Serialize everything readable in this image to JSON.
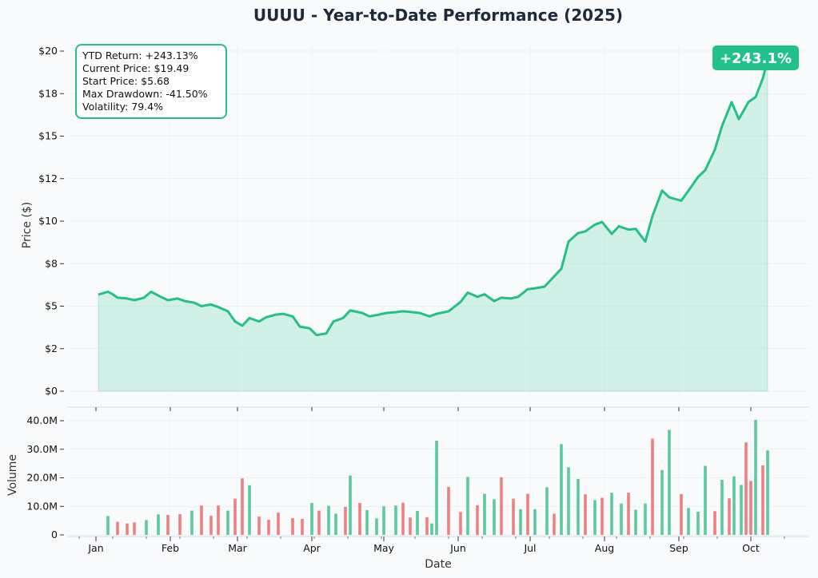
{
  "chart_data": [
    {
      "type": "area",
      "title": "UUUU - Year-to-Date Performance (2025)",
      "xlabel": "",
      "ylabel": "Price ($)",
      "ylim": [
        0,
        20
      ],
      "yticks": [
        0,
        2.5,
        5,
        7.5,
        10,
        12.5,
        15,
        17.5,
        20
      ],
      "ytick_labels": [
        "$0",
        "$2",
        "$5",
        "$8",
        "$10",
        "$12",
        "$15",
        "$18",
        "$20"
      ],
      "grid": true,
      "line_color": "#22c08a",
      "fill_color": "#22c08a",
      "series": [
        {
          "points": [
            [
              "2025-01-02",
              5.68
            ],
            [
              "2025-01-06",
              5.85
            ],
            [
              "2025-01-08",
              5.7
            ],
            [
              "2025-01-10",
              5.5
            ],
            [
              "2025-01-14",
              5.45
            ],
            [
              "2025-01-17",
              5.35
            ],
            [
              "2025-01-21",
              5.5
            ],
            [
              "2025-01-24",
              5.85
            ],
            [
              "2025-01-28",
              5.55
            ],
            [
              "2025-01-31",
              5.35
            ],
            [
              "2025-02-04",
              5.45
            ],
            [
              "2025-02-07",
              5.3
            ],
            [
              "2025-02-11",
              5.2
            ],
            [
              "2025-02-14",
              5.0
            ],
            [
              "2025-02-18",
              5.1
            ],
            [
              "2025-02-21",
              4.95
            ],
            [
              "2025-02-25",
              4.7
            ],
            [
              "2025-02-28",
              4.1
            ],
            [
              "2025-03-03",
              3.85
            ],
            [
              "2025-03-06",
              4.3
            ],
            [
              "2025-03-10",
              4.1
            ],
            [
              "2025-03-13",
              4.35
            ],
            [
              "2025-03-17",
              4.5
            ],
            [
              "2025-03-20",
              4.55
            ],
            [
              "2025-03-24",
              4.4
            ],
            [
              "2025-03-27",
              3.8
            ],
            [
              "2025-03-31",
              3.7
            ],
            [
              "2025-04-03",
              3.3
            ],
            [
              "2025-04-07",
              3.4
            ],
            [
              "2025-04-10",
              4.1
            ],
            [
              "2025-04-14",
              4.3
            ],
            [
              "2025-04-17",
              4.75
            ],
            [
              "2025-04-22",
              4.6
            ],
            [
              "2025-04-25",
              4.4
            ],
            [
              "2025-04-29",
              4.5
            ],
            [
              "2025-05-02",
              4.6
            ],
            [
              "2025-05-06",
              4.65
            ],
            [
              "2025-05-09",
              4.7
            ],
            [
              "2025-05-13",
              4.65
            ],
            [
              "2025-05-16",
              4.6
            ],
            [
              "2025-05-20",
              4.4
            ],
            [
              "2025-05-23",
              4.55
            ],
            [
              "2025-05-28",
              4.7
            ],
            [
              "2025-06-02",
              5.25
            ],
            [
              "2025-06-05",
              5.8
            ],
            [
              "2025-06-09",
              5.55
            ],
            [
              "2025-06-12",
              5.7
            ],
            [
              "2025-06-16",
              5.3
            ],
            [
              "2025-06-19",
              5.5
            ],
            [
              "2025-06-23",
              5.45
            ],
            [
              "2025-06-26",
              5.55
            ],
            [
              "2025-06-30",
              6.0
            ],
            [
              "2025-07-03",
              6.05
            ],
            [
              "2025-07-07",
              6.15
            ],
            [
              "2025-07-10",
              6.6
            ],
            [
              "2025-07-14",
              7.2
            ],
            [
              "2025-07-17",
              8.8
            ],
            [
              "2025-07-21",
              9.3
            ],
            [
              "2025-07-24",
              9.4
            ],
            [
              "2025-07-28",
              9.8
            ],
            [
              "2025-07-31",
              9.95
            ],
            [
              "2025-08-04",
              9.25
            ],
            [
              "2025-08-07",
              9.7
            ],
            [
              "2025-08-11",
              9.5
            ],
            [
              "2025-08-14",
              9.55
            ],
            [
              "2025-08-18",
              8.8
            ],
            [
              "2025-08-21",
              10.3
            ],
            [
              "2025-08-25",
              11.8
            ],
            [
              "2025-08-28",
              11.4
            ],
            [
              "2025-09-02",
              11.2
            ],
            [
              "2025-09-05",
              11.8
            ],
            [
              "2025-09-09",
              12.6
            ],
            [
              "2025-09-12",
              13.0
            ],
            [
              "2025-09-16",
              14.2
            ],
            [
              "2025-09-19",
              15.6
            ],
            [
              "2025-09-23",
              17.0
            ],
            [
              "2025-09-26",
              16.0
            ],
            [
              "2025-09-30",
              17.0
            ],
            [
              "2025-10-03",
              17.3
            ],
            [
              "2025-10-06",
              18.4
            ],
            [
              "2025-10-08",
              19.49
            ]
          ]
        }
      ],
      "annotations": {
        "info_box": [
          "YTD Return: +243.13%",
          "Current Price: $19.49",
          "Start Price: $5.68",
          "Max Drawdown: -41.50%",
          "Volatility: 79.4%"
        ],
        "badge": "+243.1%"
      }
    },
    {
      "type": "bar",
      "xlabel": "Date",
      "ylabel": "Volume",
      "ylim": [
        0,
        40000000
      ],
      "yticks": [
        0,
        10000000,
        20000000,
        30000000,
        40000000
      ],
      "ytick_labels": [
        "0",
        "10.0M",
        "20.0M",
        "30.0M",
        "40.0M"
      ],
      "x_tick_labels": [
        "Jan",
        "Feb",
        "Mar",
        "Apr",
        "May",
        "Jun",
        "Jul",
        "Aug",
        "Sep",
        "Oct"
      ],
      "x_ticks": [
        "2025-01-01",
        "2025-02-01",
        "2025-03-01",
        "2025-04-01",
        "2025-05-01",
        "2025-06-01",
        "2025-07-01",
        "2025-08-01",
        "2025-09-01",
        "2025-10-01"
      ],
      "grid": true,
      "up_color": "#5cc9a0",
      "down_color": "#ee8080",
      "volume_series": [
        {
          "date": "2025-01-06",
          "value": 6600000,
          "direction": "up"
        },
        {
          "date": "2025-01-10",
          "value": 4600000,
          "direction": "down"
        },
        {
          "date": "2025-01-14",
          "value": 4000000,
          "direction": "down"
        },
        {
          "date": "2025-01-17",
          "value": 4400000,
          "direction": "down"
        },
        {
          "date": "2025-01-22",
          "value": 5200000,
          "direction": "up"
        },
        {
          "date": "2025-01-27",
          "value": 7200000,
          "direction": "up"
        },
        {
          "date": "2025-01-31",
          "value": 7000000,
          "direction": "down"
        },
        {
          "date": "2025-02-05",
          "value": 7300000,
          "direction": "down"
        },
        {
          "date": "2025-02-10",
          "value": 8500000,
          "direction": "up"
        },
        {
          "date": "2025-02-14",
          "value": 10300000,
          "direction": "down"
        },
        {
          "date": "2025-02-18",
          "value": 6700000,
          "direction": "down"
        },
        {
          "date": "2025-02-21",
          "value": 10300000,
          "direction": "down"
        },
        {
          "date": "2025-02-25",
          "value": 8500000,
          "direction": "up"
        },
        {
          "date": "2025-02-28",
          "value": 12700000,
          "direction": "down"
        },
        {
          "date": "2025-03-03",
          "value": 19800000,
          "direction": "down"
        },
        {
          "date": "2025-03-06",
          "value": 17400000,
          "direction": "up"
        },
        {
          "date": "2025-03-10",
          "value": 6400000,
          "direction": "down"
        },
        {
          "date": "2025-03-14",
          "value": 5300000,
          "direction": "down"
        },
        {
          "date": "2025-03-18",
          "value": 7800000,
          "direction": "down"
        },
        {
          "date": "2025-03-24",
          "value": 5900000,
          "direction": "down"
        },
        {
          "date": "2025-03-28",
          "value": 5600000,
          "direction": "down"
        },
        {
          "date": "2025-04-01",
          "value": 11200000,
          "direction": "up"
        },
        {
          "date": "2025-04-04",
          "value": 8500000,
          "direction": "down"
        },
        {
          "date": "2025-04-08",
          "value": 10200000,
          "direction": "up"
        },
        {
          "date": "2025-04-11",
          "value": 7400000,
          "direction": "up"
        },
        {
          "date": "2025-04-15",
          "value": 9800000,
          "direction": "down"
        },
        {
          "date": "2025-04-17",
          "value": 20800000,
          "direction": "up"
        },
        {
          "date": "2025-04-21",
          "value": 11200000,
          "direction": "down"
        },
        {
          "date": "2025-04-24",
          "value": 8700000,
          "direction": "up"
        },
        {
          "date": "2025-04-28",
          "value": 5800000,
          "direction": "up"
        },
        {
          "date": "2025-05-01",
          "value": 10000000,
          "direction": "up"
        },
        {
          "date": "2025-05-06",
          "value": 10300000,
          "direction": "up"
        },
        {
          "date": "2025-05-09",
          "value": 11300000,
          "direction": "down"
        },
        {
          "date": "2025-05-12",
          "value": 6100000,
          "direction": "down"
        },
        {
          "date": "2025-05-15",
          "value": 8400000,
          "direction": "up"
        },
        {
          "date": "2025-05-19",
          "value": 6200000,
          "direction": "down"
        },
        {
          "date": "2025-05-21",
          "value": 4000000,
          "direction": "up"
        },
        {
          "date": "2025-05-23",
          "value": 33000000,
          "direction": "up"
        },
        {
          "date": "2025-05-28",
          "value": 16800000,
          "direction": "down"
        },
        {
          "date": "2025-06-02",
          "value": 8000000,
          "direction": "down"
        },
        {
          "date": "2025-06-05",
          "value": 20300000,
          "direction": "up"
        },
        {
          "date": "2025-06-09",
          "value": 10400000,
          "direction": "down"
        },
        {
          "date": "2025-06-12",
          "value": 14400000,
          "direction": "up"
        },
        {
          "date": "2025-06-16",
          "value": 12500000,
          "direction": "up"
        },
        {
          "date": "2025-06-19",
          "value": 20200000,
          "direction": "down"
        },
        {
          "date": "2025-06-24",
          "value": 12700000,
          "direction": "down"
        },
        {
          "date": "2025-06-27",
          "value": 9000000,
          "direction": "up"
        },
        {
          "date": "2025-06-30",
          "value": 14400000,
          "direction": "down"
        },
        {
          "date": "2025-07-03",
          "value": 9000000,
          "direction": "up"
        },
        {
          "date": "2025-07-08",
          "value": 16700000,
          "direction": "up"
        },
        {
          "date": "2025-07-11",
          "value": 7400000,
          "direction": "down"
        },
        {
          "date": "2025-07-14",
          "value": 31800000,
          "direction": "up"
        },
        {
          "date": "2025-07-17",
          "value": 23700000,
          "direction": "up"
        },
        {
          "date": "2025-07-21",
          "value": 19600000,
          "direction": "up"
        },
        {
          "date": "2025-07-24",
          "value": 14200000,
          "direction": "down"
        },
        {
          "date": "2025-07-28",
          "value": 12200000,
          "direction": "up"
        },
        {
          "date": "2025-07-31",
          "value": 13000000,
          "direction": "down"
        },
        {
          "date": "2025-08-04",
          "value": 14800000,
          "direction": "up"
        },
        {
          "date": "2025-08-08",
          "value": 11000000,
          "direction": "up"
        },
        {
          "date": "2025-08-11",
          "value": 14800000,
          "direction": "down"
        },
        {
          "date": "2025-08-14",
          "value": 8800000,
          "direction": "up"
        },
        {
          "date": "2025-08-18",
          "value": 11000000,
          "direction": "up"
        },
        {
          "date": "2025-08-21",
          "value": 33700000,
          "direction": "down"
        },
        {
          "date": "2025-08-25",
          "value": 22700000,
          "direction": "up"
        },
        {
          "date": "2025-08-28",
          "value": 36800000,
          "direction": "up"
        },
        {
          "date": "2025-09-02",
          "value": 14300000,
          "direction": "down"
        },
        {
          "date": "2025-09-05",
          "value": 9400000,
          "direction": "up"
        },
        {
          "date": "2025-09-09",
          "value": 8100000,
          "direction": "up"
        },
        {
          "date": "2025-09-12",
          "value": 24200000,
          "direction": "up"
        },
        {
          "date": "2025-09-16",
          "value": 8300000,
          "direction": "down"
        },
        {
          "date": "2025-09-19",
          "value": 19300000,
          "direction": "up"
        },
        {
          "date": "2025-09-22",
          "value": 12800000,
          "direction": "down"
        },
        {
          "date": "2025-09-24",
          "value": 20500000,
          "direction": "up"
        },
        {
          "date": "2025-09-27",
          "value": 17500000,
          "direction": "up"
        },
        {
          "date": "2025-09-29",
          "value": 32400000,
          "direction": "down"
        },
        {
          "date": "2025-10-01",
          "value": 18900000,
          "direction": "down"
        },
        {
          "date": "2025-10-03",
          "value": 40300000,
          "direction": "up"
        },
        {
          "date": "2025-10-06",
          "value": 24400000,
          "direction": "down"
        },
        {
          "date": "2025-10-08",
          "value": 29600000,
          "direction": "up"
        }
      ]
    }
  ]
}
